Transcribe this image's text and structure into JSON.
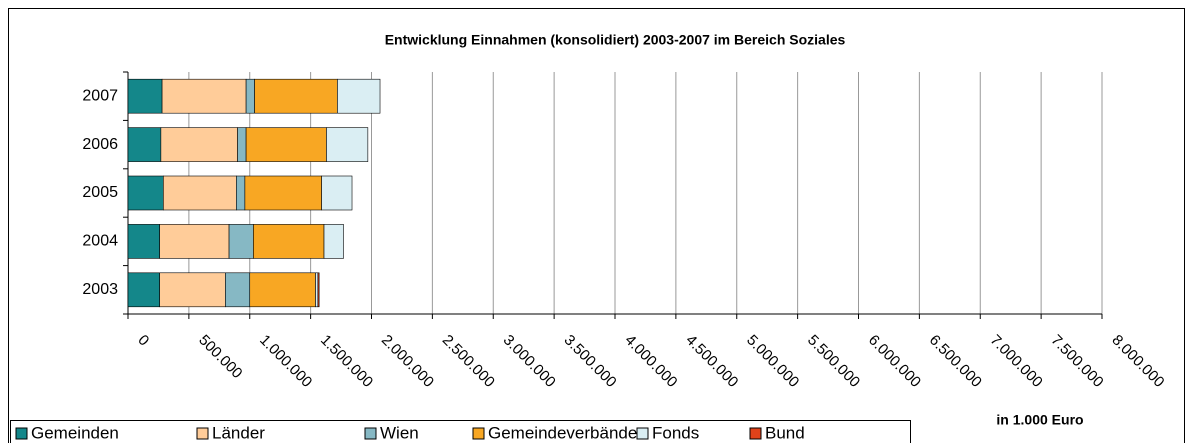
{
  "chart_data": {
    "type": "stacked_barh",
    "title": "Entwicklung Einnahmen (konsolidiert) 2003-2007 im Bereich Soziales",
    "x_label": "in 1.000 Euro",
    "categories": [
      "2007",
      "2006",
      "2005",
      "2004",
      "2003"
    ],
    "series": [
      {
        "name": "Gemeinden",
        "color": "#14878a",
        "values": [
          280000,
          270000,
          290000,
          260000,
          260000
        ]
      },
      {
        "name": "Länder",
        "color": "#ffcc99",
        "values": [
          690000,
          630000,
          600000,
          570000,
          540000
        ]
      },
      {
        "name": "Wien",
        "color": "#86b8c4",
        "values": [
          70000,
          70000,
          70000,
          200000,
          200000
        ]
      },
      {
        "name": "Gemeindeverbände",
        "color": "#f8a723",
        "values": [
          680000,
          660000,
          630000,
          580000,
          540000
        ]
      },
      {
        "name": "Fonds",
        "color": "#daeef3",
        "values": [
          350000,
          340000,
          250000,
          160000,
          20000
        ]
      },
      {
        "name": "Bund",
        "color": "#e0421a",
        "values": [
          0,
          0,
          0,
          0,
          10000
        ]
      }
    ],
    "xlim": [
      0,
      8000000
    ],
    "xticks": [
      0,
      {
        "value": 500000,
        "label": "500.000"
      },
      {
        "value": 1000000,
        "label": "1.000.000"
      },
      {
        "value": 1500000,
        "label": "1.500.000"
      },
      {
        "value": 2000000,
        "label": "2.000.000"
      },
      {
        "value": 2500000,
        "label": "2.500.000"
      },
      {
        "value": 3000000,
        "label": "3.000.000"
      },
      {
        "value": 3500000,
        "label": "3.500.000"
      },
      {
        "value": 4000000,
        "label": "4.000.000"
      },
      {
        "value": 4500000,
        "label": "4.500.000"
      },
      {
        "value": 5000000,
        "label": "5.000.000"
      },
      {
        "value": 5500000,
        "label": "5.500.000"
      },
      {
        "value": 6000000,
        "label": "6.000.000"
      },
      {
        "value": 6500000,
        "label": "6.500.000"
      },
      {
        "value": 7000000,
        "label": "7.000.000"
      },
      {
        "value": 7500000,
        "label": "7.500.000"
      },
      {
        "value": 8000000,
        "label": "8.000.000"
      }
    ],
    "grid": true,
    "legend": "bottom"
  }
}
